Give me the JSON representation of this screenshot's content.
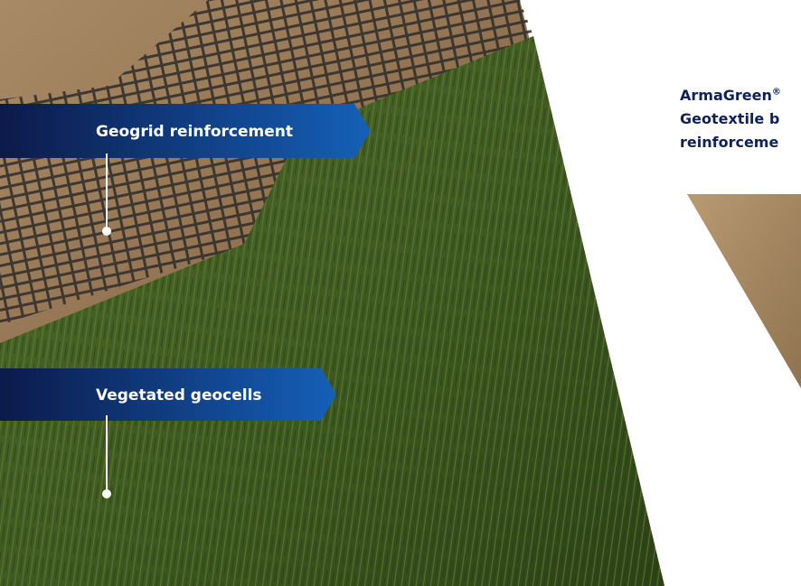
{
  "callouts": [
    {
      "label": "Geogrid reinforcement"
    },
    {
      "label": "Vegetated geocells"
    }
  ],
  "side_caption": {
    "brand": "ArmaGreen",
    "mark": "®",
    "line2": "Geotextile b",
    "line3": "reinforceme"
  }
}
